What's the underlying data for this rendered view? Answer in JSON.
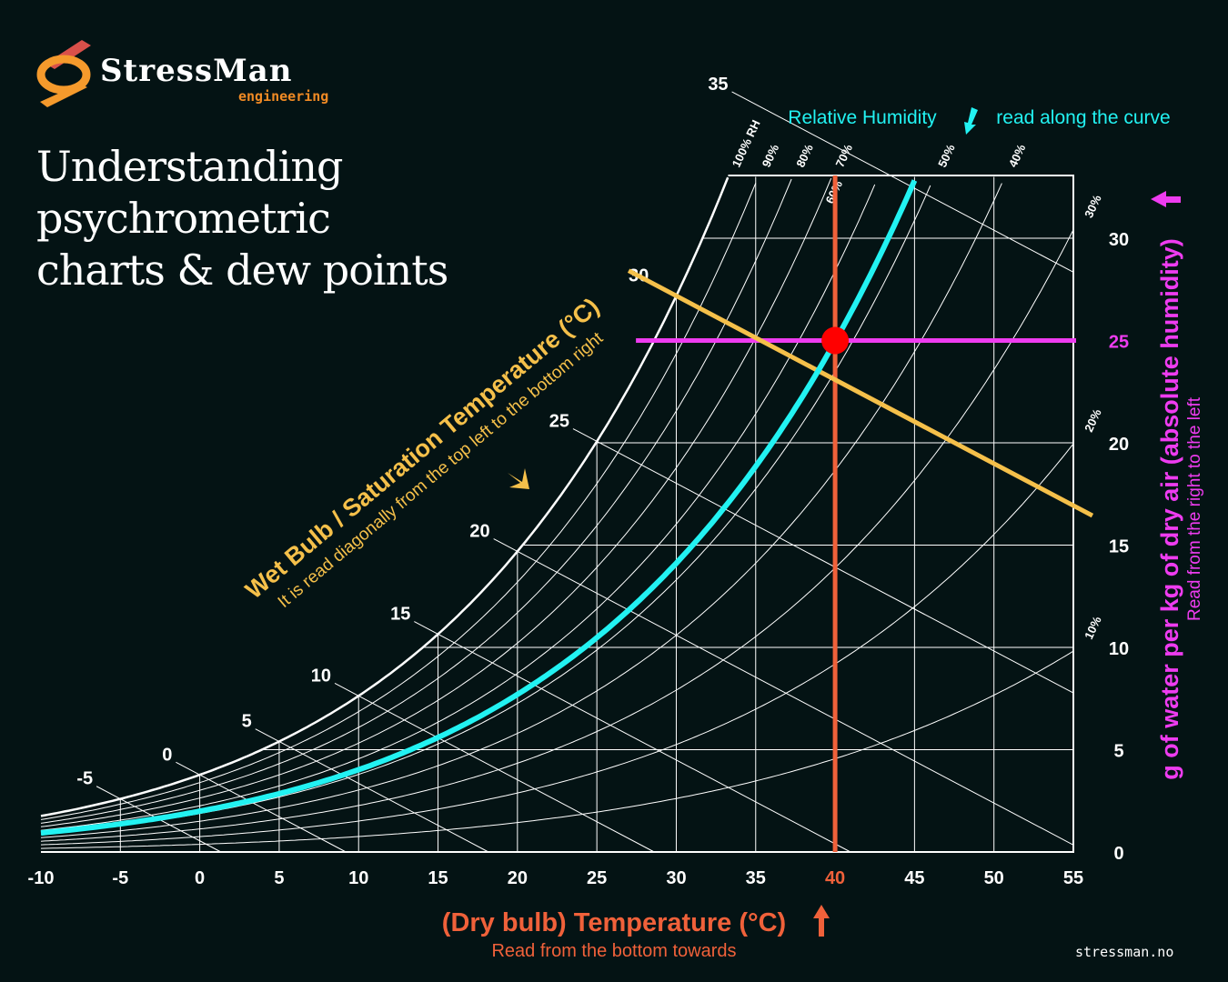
{
  "brand": {
    "name": "StressMan",
    "sub": "engineering",
    "website": "stressman.no"
  },
  "title_lines": [
    "Understanding",
    "psychrometric",
    "charts & dew points"
  ],
  "labels": {
    "rh_title": "Relative Humidity",
    "rh_hint": "read along the curve",
    "wb_title": "Wet Bulb / Saturation Temperature (°C)",
    "wb_hint": "It is read diagonally from the top left to the bottom right",
    "x_title": "(Dry bulb) Temperature (°C)",
    "x_hint": "Read from the bottom towards",
    "y_title": "g of water per kg of dry air (absolute humidity)",
    "y_hint": "Read from the right to the left"
  },
  "colors": {
    "bg": "#041314",
    "grid": "#ffffff",
    "rh_highlight": "#22f2f2",
    "dry_bulb": "#f0613a",
    "wet_bulb": "#f5c04a",
    "humidity": "#ee3cf0",
    "point": "#ff0000"
  },
  "chart_data": {
    "type": "line",
    "title": "Psychrometric chart",
    "xlabel": "(Dry bulb) Temperature (°C)",
    "ylabel": "g of water per kg of dry air (absolute humidity)",
    "xlim": [
      -10,
      55
    ],
    "ylim": [
      0,
      33
    ],
    "x_ticks": [
      -10,
      -5,
      0,
      5,
      10,
      15,
      20,
      25,
      30,
      35,
      40,
      45,
      50,
      55
    ],
    "y_ticks": [
      0,
      5,
      10,
      15,
      20,
      25,
      30
    ],
    "rh_curves": [
      100,
      90,
      80,
      70,
      60,
      50,
      40,
      30,
      20,
      10
    ],
    "rh_top_labels": [
      "100% RH",
      "90%",
      "80%",
      "70%",
      "60%",
      "50%",
      "40%"
    ],
    "rh_side_labels": [
      "30%",
      "20%",
      "10%"
    ],
    "wet_bulb_lines": [
      -5,
      0,
      5,
      10,
      15,
      20,
      25,
      30,
      35
    ],
    "highlight": {
      "dry_bulb": 40,
      "humidity": 25,
      "wet_bulb": 30,
      "rh_percent": 53
    }
  }
}
